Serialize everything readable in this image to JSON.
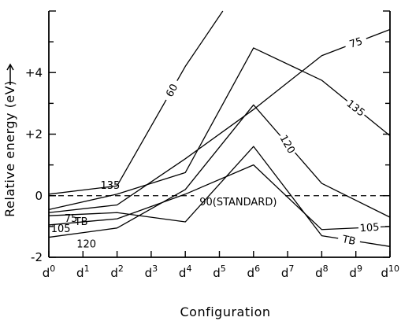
{
  "chart_data": {
    "type": "line",
    "xlabel": "Configuration",
    "ylabel": "Relative energy (eV)",
    "ylim": [
      -2,
      6
    ],
    "x_tick_labels": [
      {
        "base": "d",
        "sup": "0"
      },
      {
        "base": "d",
        "sup": "1"
      },
      {
        "base": "d",
        "sup": "2"
      },
      {
        "base": "d",
        "sup": "3"
      },
      {
        "base": "d",
        "sup": "4"
      },
      {
        "base": "d",
        "sup": "5"
      },
      {
        "base": "d",
        "sup": "6"
      },
      {
        "base": "d",
        "sup": "7"
      },
      {
        "base": "d",
        "sup": "8"
      },
      {
        "base": "d",
        "sup": "9"
      },
      {
        "base": "d",
        "sup": "10"
      }
    ],
    "y_tick_labels": [
      "-2",
      "0",
      "+2",
      "+4"
    ],
    "y_ticks": [
      -2,
      0,
      2,
      4
    ],
    "reference_line": {
      "y": 0,
      "label": "90(STANDARD)",
      "style": "dashed"
    },
    "series": [
      {
        "name": "60",
        "x": [
          0,
          2,
          4,
          5.1
        ],
        "y": [
          0.05,
          0.32,
          4.2,
          6.0
        ]
      },
      {
        "name": "75",
        "x": [
          0,
          2,
          4,
          6,
          8,
          10
        ],
        "y": [
          -0.55,
          -0.3,
          1.2,
          2.8,
          4.55,
          5.4
        ]
      },
      {
        "name": "135",
        "x": [
          0,
          2,
          4,
          6,
          8,
          10
        ],
        "y": [
          -0.45,
          0.05,
          0.75,
          4.8,
          3.75,
          1.95
        ]
      },
      {
        "name": "120",
        "x": [
          0,
          2,
          4,
          6,
          8,
          10
        ],
        "y": [
          -1.35,
          -1.05,
          0.2,
          2.95,
          0.4,
          -0.7
        ]
      },
      {
        "name": "105",
        "x": [
          0,
          2,
          4,
          6,
          8,
          10
        ],
        "y": [
          -0.95,
          -0.75,
          0.05,
          1.0,
          -1.1,
          -1.0
        ]
      },
      {
        "name": "TB",
        "x": [
          0,
          2,
          4,
          6,
          8,
          10
        ],
        "y": [
          -0.65,
          -0.55,
          -0.85,
          1.6,
          -1.3,
          -1.65
        ]
      }
    ]
  }
}
